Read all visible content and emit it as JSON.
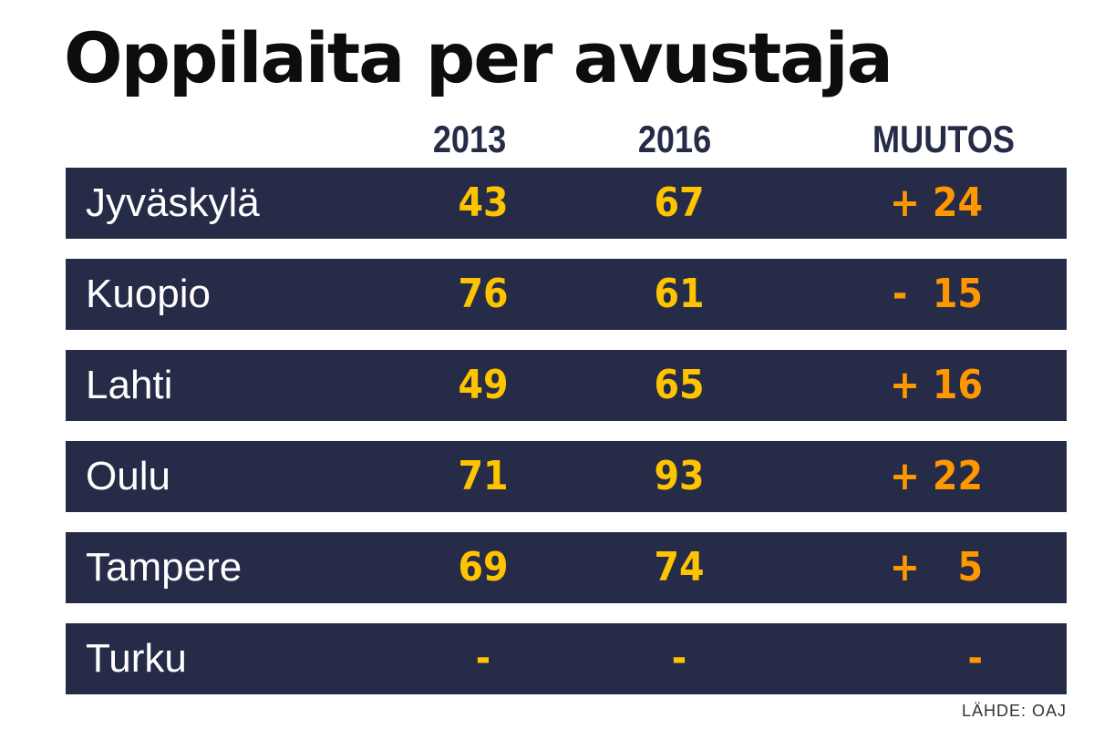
{
  "chart_data": {
    "type": "table",
    "title": "Oppilaita per avustaja",
    "columns": [
      "2013",
      "2016",
      "MUUTOS"
    ],
    "rows": [
      {
        "city": "Jyväskylä",
        "v2013": "43",
        "v2016": "67",
        "change": "+ 24"
      },
      {
        "city": "Kuopio",
        "v2013": "76",
        "v2016": "61",
        "change": "-  15"
      },
      {
        "city": "Lahti",
        "v2013": "49",
        "v2016": "65",
        "change": "+ 16"
      },
      {
        "city": "Oulu",
        "v2013": "71",
        "v2016": "93",
        "change": "+ 22"
      },
      {
        "city": "Tampere",
        "v2013": "69",
        "v2016": "74",
        "change": "+   5"
      },
      {
        "city": "Turku",
        "v2013": "-",
        "v2016": "-",
        "change": "-"
      }
    ],
    "source": "LÄHDE: OAJ"
  },
  "colors": {
    "row_background": "#262c47",
    "city_text": "#ffffff",
    "value_text": "#ffc400",
    "change_text": "#ff9800",
    "header_text": "#262c47",
    "title_text": "#0d0d0d"
  }
}
